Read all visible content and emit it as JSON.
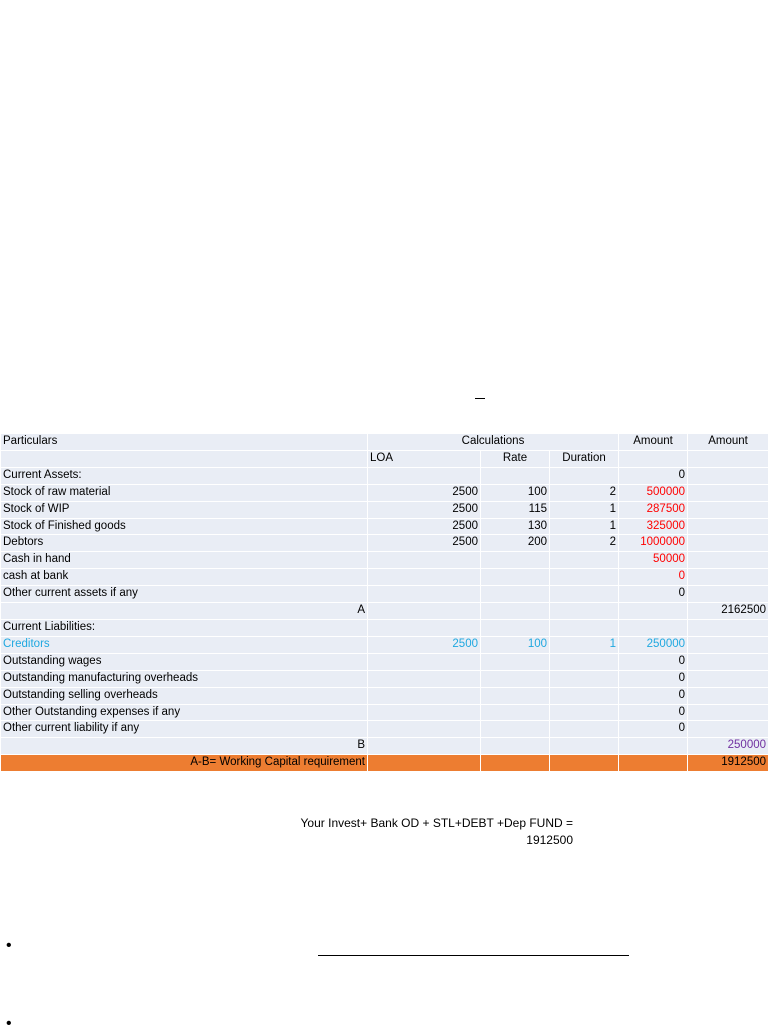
{
  "header_row": [
    "Particulars",
    "Calculations",
    "Amount",
    "Amount"
  ],
  "sub_header": [
    "LOA",
    "Rate",
    "Duration"
  ],
  "rows": [
    {
      "label": "Current Assets:",
      "loa": "",
      "rate": "",
      "duration": "",
      "amount": "0",
      "amount2": ""
    },
    {
      "label": "Stock of raw material",
      "loa": "2500",
      "rate": "100",
      "duration": "2",
      "amount": "500000",
      "amount2": ""
    },
    {
      "label": "Stock of WIP",
      "loa": "2500",
      "rate": "115",
      "duration": "1",
      "amount": "287500",
      "amount2": ""
    },
    {
      "label": "Stock of Finished goods",
      "loa": "2500",
      "rate": "130",
      "duration": "1",
      "amount": "325000",
      "amount2": ""
    },
    {
      "label": "Debtors",
      "loa": "2500",
      "rate": "200",
      "duration": "2",
      "amount": "1000000",
      "amount2": ""
    },
    {
      "label": "Cash in hand",
      "loa": "",
      "rate": "",
      "duration": "",
      "amount": "50000",
      "amount2": ""
    },
    {
      "label": "cash at bank",
      "loa": "",
      "rate": "",
      "duration": "",
      "amount": "0",
      "amount2": ""
    },
    {
      "label": "Other current assets if any",
      "loa": "",
      "rate": "",
      "duration": "",
      "amount": "0",
      "amount2": ""
    },
    {
      "label": "A",
      "loa": "",
      "rate": "",
      "duration": "",
      "amount": "",
      "amount2": "2162500"
    },
    {
      "label": "Current Liabilities:",
      "loa": "",
      "rate": "",
      "duration": "",
      "amount": "",
      "amount2": ""
    },
    {
      "label": "Creditors",
      "loa": "2500",
      "rate": "100",
      "duration": "1",
      "amount": "250000",
      "amount2": ""
    },
    {
      "label": "Outstanding wages",
      "loa": "",
      "rate": "",
      "duration": "",
      "amount": "0",
      "amount2": ""
    },
    {
      "label": "Outstanding manufacturing overheads",
      "loa": "",
      "rate": "",
      "duration": "",
      "amount": "0",
      "amount2": ""
    },
    {
      "label": "Outstanding selling overheads",
      "loa": "",
      "rate": "",
      "duration": "",
      "amount": "0",
      "amount2": ""
    },
    {
      "label": "Other Outstanding expenses if any",
      "loa": "",
      "rate": "",
      "duration": "",
      "amount": "0",
      "amount2": ""
    },
    {
      "label": "Other current liability if any",
      "loa": "",
      "rate": "",
      "duration": "",
      "amount": "0",
      "amount2": ""
    },
    {
      "label": "B",
      "loa": "",
      "rate": "",
      "duration": "",
      "amount": "",
      "amount2": "250000"
    },
    {
      "label": "A-B= Working Capital requirement",
      "loa": "",
      "rate": "",
      "duration": "",
      "amount": "",
      "amount2": "1912500"
    }
  ],
  "formula": {
    "line1": "Your Invest+ Bank OD + STL+DEBT +Dep FUND =",
    "line2": "1912500"
  },
  "bullets": [
    "•",
    "•"
  ],
  "colors": {
    "row_bg": "#e9edf5",
    "total_bg": "#ed7d31",
    "red": "#ff0000",
    "cyan": "#1fa8e0",
    "purple": "#7030a0"
  }
}
